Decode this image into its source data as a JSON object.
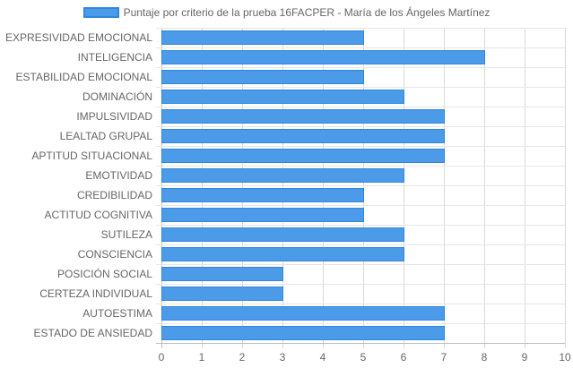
{
  "chart_data": {
    "type": "bar",
    "orientation": "horizontal",
    "categories": [
      "EXPRESIVIDAD EMOCIONAL",
      "INTELIGENCIA",
      "ESTABILIDAD EMOCIONAL",
      "DOMINACIÓN",
      "IMPULSIVIDAD",
      "LEALTAD GRUPAL",
      "APTITUD SITUACIONAL",
      "EMOTIVIDAD",
      "CREDIBILIDAD",
      "ACTITUD COGNITIVA",
      "SUTILEZA",
      "CONSCIENCIA",
      "POSICIÓN SOCIAL",
      "CERTEZA INDIVIDUAL",
      "AUTOESTIMA",
      "ESTADO DE ANSIEDAD"
    ],
    "series": [
      {
        "name": "Puntaje por criterio de la prueba 16FACPER - María de los Ángeles Martínez",
        "values": [
          5,
          8,
          5,
          6,
          7,
          7,
          7,
          6,
          5,
          5,
          6,
          6,
          3,
          3,
          7,
          7
        ],
        "color": "#4c9be8",
        "border_color": "#2e86de"
      }
    ],
    "xlim": [
      0,
      10
    ],
    "xticks": [
      "0",
      "1",
      "2",
      "3",
      "4",
      "5",
      "6",
      "7",
      "8",
      "9",
      "10"
    ],
    "grid": true,
    "legend_position": "top"
  }
}
